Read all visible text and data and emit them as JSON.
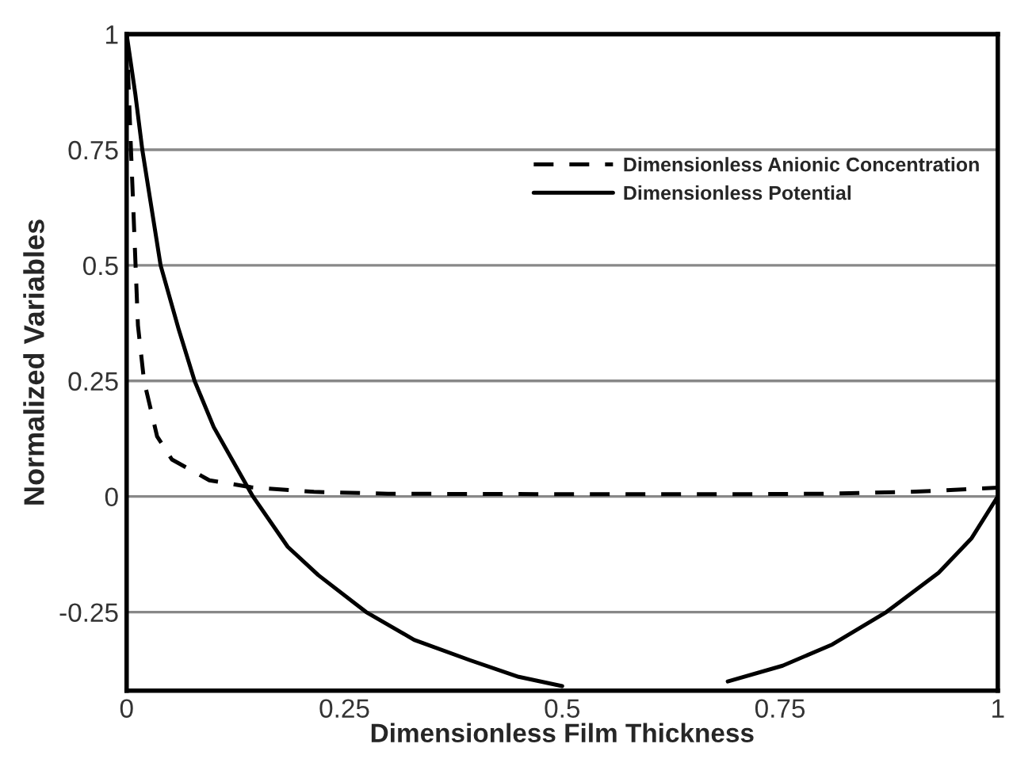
{
  "chart_data": {
    "type": "line",
    "xlabel": "Dimensionless Film Thickness",
    "ylabel": "Normalized Variables",
    "xlim": [
      0,
      1
    ],
    "ylim": [
      -0.42,
      1
    ],
    "xticks": [
      0,
      0.25,
      0.5,
      0.75,
      1
    ],
    "yticks": [
      -0.25,
      0,
      0.25,
      0.5,
      0.75,
      1
    ],
    "grid": "y",
    "legend": "top right",
    "marker": "none",
    "series": [
      {
        "name": "Dimensionless Anionic Concentration",
        "color": "#000000",
        "line_style": "dashed",
        "x": [
          0,
          0.005,
          0.013,
          0.02,
          0.035,
          0.052,
          0.095,
          0.143,
          0.215,
          0.3,
          0.5,
          0.7,
          0.8,
          0.9,
          1
        ],
        "values": [
          1,
          0.75,
          0.37,
          0.25,
          0.13,
          0.08,
          0.035,
          0.02,
          0.01,
          0.006,
          0.005,
          0.005,
          0.006,
          0.01,
          0.019
        ]
      },
      {
        "name": "Dimensionless Potential",
        "color": "#000000",
        "line_style": "solid",
        "x": [
          0,
          0.01,
          0.018,
          0.039,
          0.06,
          0.078,
          0.1,
          0.145,
          0.185,
          0.22,
          0.275,
          0.33,
          0.394,
          0.45,
          0.5,
          0.56,
          0.633,
          0.69,
          0.753,
          0.81,
          0.872,
          0.932,
          0.97,
          1
        ],
        "values": [
          1,
          0.87,
          0.75,
          0.5,
          0.36,
          0.25,
          0.15,
          0,
          -0.109,
          -0.17,
          -0.25,
          -0.31,
          -0.354,
          -0.39,
          -0.41,
          null,
          null,
          -0.4,
          -0.366,
          -0.32,
          -0.25,
          -0.165,
          -0.09,
          0
        ]
      }
    ]
  }
}
